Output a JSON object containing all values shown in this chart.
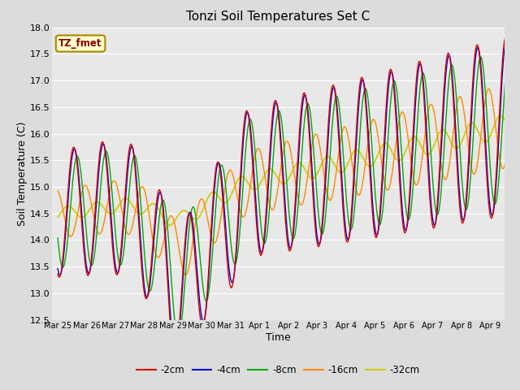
{
  "title": "Tonzi Soil Temperatures Set C",
  "xlabel": "Time",
  "ylabel": "Soil Temperature (C)",
  "ylim": [
    12.5,
    18.0
  ],
  "figure_bg": "#dcdcdc",
  "plot_bg": "#e8e8e8",
  "grid_color": "#ffffff",
  "annotation_text": "TZ_fmet",
  "annotation_color": "#8B0000",
  "annotation_bg": "#ffffcc",
  "annotation_border": "#aa8800",
  "colors": {
    "-2cm": "#dd0000",
    "-4cm": "#0000cc",
    "-8cm": "#00aa00",
    "-16cm": "#ff8800",
    "-32cm": "#cccc00"
  },
  "xtick_labels": [
    "Mar 25",
    "Mar 26",
    "Mar 27",
    "Mar 28",
    "Mar 29",
    "Mar 30",
    "Mar 31",
    "Apr 1",
    "Apr 2",
    "Apr 3",
    "Apr 4",
    "Apr 5",
    "Apr 6",
    "Apr 7",
    "Apr 8",
    "Apr 9"
  ],
  "ytick_values": [
    12.5,
    13.0,
    13.5,
    14.0,
    14.5,
    15.0,
    15.5,
    16.0,
    16.5,
    17.0,
    17.5,
    18.0
  ],
  "num_days": 16,
  "pts_per_day": 48
}
